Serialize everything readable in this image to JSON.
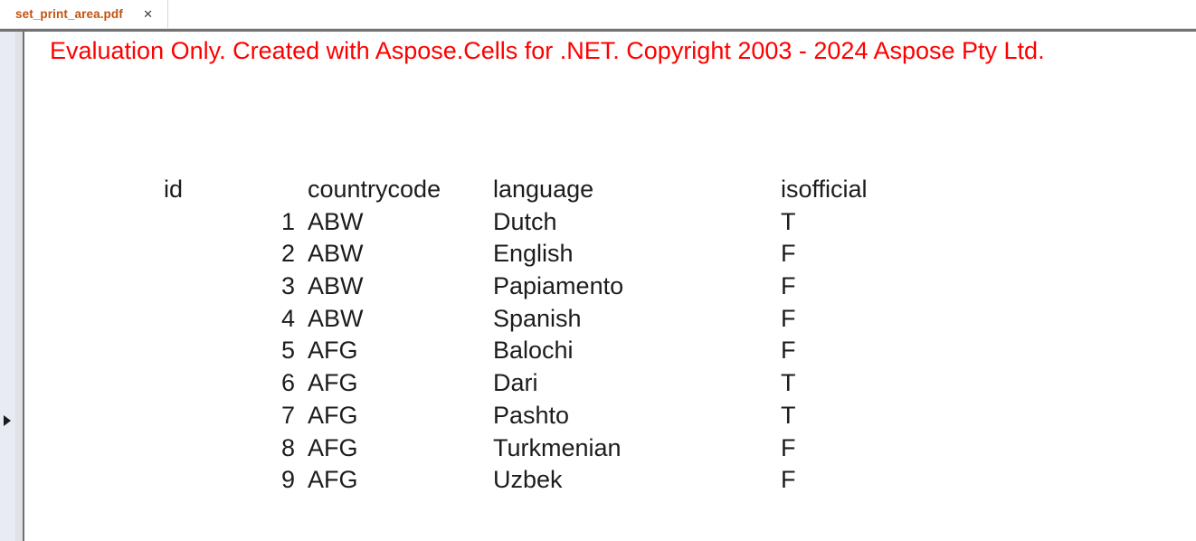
{
  "tab_bar": {
    "tabs": [
      {
        "label": "set_print_area.pdf",
        "active": true
      }
    ],
    "close_glyph": "✕"
  },
  "side_rail": {
    "expander_glyph": "▶"
  },
  "page": {
    "watermark": "Evaluation Only. Created with Aspose.Cells for .NET. Copyright 2003 - 2024 Aspose Pty Ltd.",
    "table": {
      "columns": [
        "id",
        "countrycode",
        "language",
        "isofficial"
      ],
      "rows": [
        [
          "1",
          "ABW",
          "Dutch",
          "T"
        ],
        [
          "2",
          "ABW",
          "English",
          "F"
        ],
        [
          "3",
          "ABW",
          "Papiamento",
          "F"
        ],
        [
          "4",
          "ABW",
          "Spanish",
          "F"
        ],
        [
          "5",
          "AFG",
          "Balochi",
          "F"
        ],
        [
          "6",
          "AFG",
          "Dari",
          "T"
        ],
        [
          "7",
          "AFG",
          "Pashto",
          "T"
        ],
        [
          "8",
          "AFG",
          "Turkmenian",
          "F"
        ],
        [
          "9",
          "AFG",
          "Uzbek",
          "F"
        ]
      ]
    }
  },
  "colors": {
    "tab_text": "#c3520d",
    "watermark": "#ff0000",
    "page_text": "#1c1c1c",
    "page_border": "#6f6f6f",
    "separator": "#717375",
    "rail_bg": "#e8ebf4"
  }
}
